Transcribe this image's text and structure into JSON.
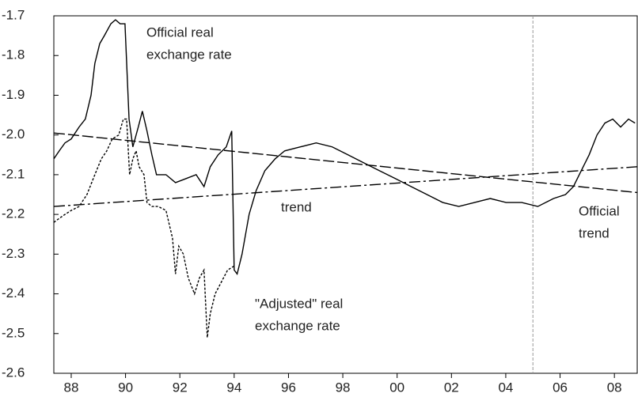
{
  "chart_data": {
    "type": "line",
    "xlim": [
      1987.36,
      2008.84
    ],
    "xticks": [
      {
        "value": 1988,
        "label": "88"
      },
      {
        "value": 1990,
        "label": "90"
      },
      {
        "value": 1992,
        "label": "92"
      },
      {
        "value": 1994,
        "label": "94"
      },
      {
        "value": 1996,
        "label": "96"
      },
      {
        "value": 1998,
        "label": "98"
      },
      {
        "value": 2000,
        "label": "00"
      },
      {
        "value": 2002,
        "label": "02"
      },
      {
        "value": 2004,
        "label": "04"
      },
      {
        "value": 2006,
        "label": "06"
      },
      {
        "value": 2008,
        "label": "08"
      }
    ],
    "ylim": [
      -2.6,
      -1.7
    ],
    "yticks": [
      -1.7,
      -1.8,
      -1.9,
      {
        "value": -2.0,
        "label": "-2.0"
      },
      -2.1,
      -2.2,
      -2.3,
      -2.4,
      -2.5,
      -2.6
    ],
    "vline": 2005.0,
    "vline_color": "#999999",
    "series": [
      {
        "color": "#000000",
        "dash": "none",
        "x": [
          1987.36,
          1987.56,
          1987.77,
          1988.0,
          1988.29,
          1988.52,
          1988.73,
          1988.87,
          1989.05,
          1989.22,
          1989.46,
          1989.63,
          1989.8,
          1989.98,
          1990.13,
          1990.27,
          1990.47,
          1990.62,
          1990.79,
          1990.97,
          1991.14,
          1991.49,
          1991.84,
          1992.22,
          1992.6,
          1992.89,
          1993.12,
          1993.41,
          1993.71,
          1993.91,
          1994.0,
          1994.11,
          1994.29,
          1994.55,
          1994.81,
          1995.13,
          1995.51,
          1995.86,
          1996.44,
          1997.02,
          1997.61,
          1998.19,
          1998.77,
          1999.35,
          1999.94,
          2000.52,
          2001.1,
          2001.68,
          2002.27,
          2002.85,
          2003.43,
          2004.01,
          2004.59,
          2005.18,
          2005.76,
          2006.2,
          2006.49,
          2006.78,
          2007.07,
          2007.36,
          2007.65,
          2007.94,
          2008.23,
          2008.52,
          2008.76
        ],
        "values": [
          -2.06,
          -2.04,
          -2.02,
          -2.01,
          -1.98,
          -1.96,
          -1.9,
          -1.82,
          -1.77,
          -1.75,
          -1.72,
          -1.71,
          -1.72,
          -1.72,
          -1.96,
          -2.03,
          -1.98,
          -1.94,
          -1.99,
          -2.05,
          -2.1,
          -2.1,
          -2.12,
          -2.11,
          -2.1,
          -2.13,
          -2.08,
          -2.05,
          -2.03,
          -1.99,
          -2.34,
          -2.35,
          -2.3,
          -2.2,
          -2.14,
          -2.09,
          -2.06,
          -2.04,
          -2.03,
          -2.02,
          -2.03,
          -2.05,
          -2.07,
          -2.09,
          -2.11,
          -2.13,
          -2.15,
          -2.17,
          -2.18,
          -2.17,
          -2.16,
          -2.17,
          -2.17,
          -2.18,
          -2.16,
          -2.15,
          -2.13,
          -2.09,
          -2.05,
          -2.0,
          -1.97,
          -1.96,
          -1.98,
          -1.96,
          -1.97
        ]
      },
      {
        "color": "#000000",
        "dash": "3,2",
        "x": [
          1987.36,
          1987.56,
          1987.77,
          1988.0,
          1988.29,
          1988.58,
          1988.87,
          1989.11,
          1989.31,
          1989.51,
          1989.75,
          1989.92,
          1990.04,
          1990.15,
          1990.27,
          1990.39,
          1990.5,
          1990.68,
          1990.79,
          1990.97,
          1991.2,
          1991.49,
          1991.73,
          1991.84,
          1991.96,
          1992.13,
          1992.31,
          1992.54,
          1992.72,
          1992.89,
          1993.01,
          1993.12,
          1993.3,
          1993.53,
          1993.76,
          1994.0
        ],
        "values": [
          -2.22,
          -2.21,
          -2.2,
          -2.19,
          -2.18,
          -2.15,
          -2.1,
          -2.06,
          -2.04,
          -2.01,
          -2.0,
          -1.96,
          -1.96,
          -2.1,
          -2.06,
          -2.04,
          -2.08,
          -2.1,
          -2.17,
          -2.18,
          -2.18,
          -2.19,
          -2.26,
          -2.35,
          -2.28,
          -2.3,
          -2.36,
          -2.4,
          -2.36,
          -2.34,
          -2.51,
          -2.45,
          -2.4,
          -2.37,
          -2.34,
          -2.33
        ]
      },
      {
        "color": "#000000",
        "dash": "14,4",
        "x": [
          1987.36,
          2008.84
        ],
        "values": [
          -1.995,
          -2.145
        ]
      },
      {
        "color": "#000000",
        "dash": "14,4,3,4",
        "x": [
          1987.36,
          2008.84
        ],
        "values": [
          -2.18,
          -2.08
        ]
      }
    ],
    "annotations": [
      {
        "lines": [
          "Official real",
          "exchange rate"
        ]
      },
      {
        "lines": [
          "trend"
        ]
      },
      {
        "lines": [
          "Official",
          "trend"
        ]
      },
      {
        "lines": [
          "\"Adjusted\" real",
          "exchange rate"
        ]
      }
    ]
  }
}
